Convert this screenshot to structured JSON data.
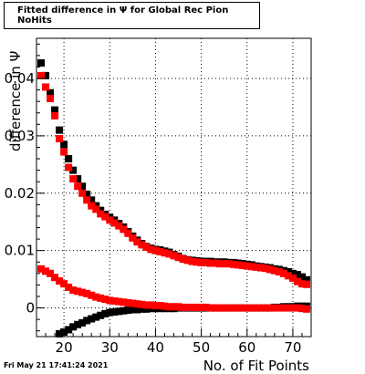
{
  "chart_data": {
    "type": "scatter",
    "title": "Fitted difference in  Ψ  for Global Rec Pion NoHits",
    "xlabel": "No. of Fit Points",
    "ylabel": "difference in  Ψ",
    "xlim": [
      14,
      74
    ],
    "ylim": [
      -0.005,
      0.047
    ],
    "xticks": [
      20,
      30,
      40,
      50,
      60,
      70
    ],
    "yticks": [
      0,
      0.01,
      0.02,
      0.03,
      0.04
    ],
    "ytick_labels": [
      "0",
      "0.01",
      "0.02",
      "0.03",
      "0.04"
    ],
    "grid": true,
    "series": [
      {
        "color": "#000000",
        "x": [
          15,
          16,
          17,
          18,
          19,
          20,
          21,
          22,
          23,
          24,
          25,
          26,
          27,
          28,
          29,
          30,
          31,
          32,
          33,
          34,
          35,
          36,
          37,
          38,
          39,
          40,
          41,
          42,
          43,
          44,
          45,
          46,
          47,
          48,
          49,
          50,
          51,
          52,
          53,
          54,
          55,
          56,
          57,
          58,
          59,
          60,
          61,
          62,
          63,
          64,
          65,
          66,
          67,
          68,
          69,
          70,
          71,
          72,
          73
        ],
        "y": [
          0.0427,
          0.0405,
          0.0375,
          0.0345,
          0.031,
          0.0285,
          0.026,
          0.024,
          0.0225,
          0.0212,
          0.0198,
          0.0188,
          0.0178,
          0.017,
          0.0163,
          0.0158,
          0.0153,
          0.0147,
          0.0141,
          0.0133,
          0.0125,
          0.0118,
          0.0112,
          0.0107,
          0.0104,
          0.0102,
          0.0101,
          0.0099,
          0.0097,
          0.0093,
          0.009,
          0.0086,
          0.0084,
          0.0083,
          0.0082,
          0.0081,
          0.0081,
          0.0081,
          0.008,
          0.008,
          0.008,
          0.0079,
          0.0079,
          0.0078,
          0.0077,
          0.0076,
          0.0075,
          0.0073,
          0.0072,
          0.0071,
          0.007,
          0.0068,
          0.0067,
          0.0065,
          0.0063,
          0.006,
          0.0058,
          0.0054,
          0.0049
        ]
      },
      {
        "color": "#ff0000",
        "x": [
          15,
          16,
          17,
          18,
          19,
          20,
          21,
          22,
          23,
          24,
          25,
          26,
          27,
          28,
          29,
          30,
          31,
          32,
          33,
          34,
          35,
          36,
          37,
          38,
          39,
          40,
          41,
          42,
          43,
          44,
          45,
          46,
          47,
          48,
          49,
          50,
          51,
          52,
          53,
          54,
          55,
          56,
          57,
          58,
          59,
          60,
          61,
          62,
          63,
          64,
          65,
          66,
          67,
          68,
          69,
          70,
          71,
          72,
          73
        ],
        "y": [
          0.0405,
          0.0385,
          0.0365,
          0.0335,
          0.0295,
          0.0272,
          0.0245,
          0.0225,
          0.0212,
          0.02,
          0.0188,
          0.0178,
          0.0172,
          0.0164,
          0.0159,
          0.0153,
          0.0148,
          0.0143,
          0.0137,
          0.013,
          0.0122,
          0.0115,
          0.011,
          0.0106,
          0.0102,
          0.01,
          0.0098,
          0.0096,
          0.0094,
          0.0091,
          0.0088,
          0.0085,
          0.0083,
          0.0081,
          0.008,
          0.0079,
          0.0079,
          0.0078,
          0.0078,
          0.0077,
          0.0077,
          0.0077,
          0.0076,
          0.0075,
          0.0074,
          0.0073,
          0.0072,
          0.0071,
          0.007,
          0.0069,
          0.0067,
          0.0065,
          0.0063,
          0.006,
          0.0056,
          0.0052,
          0.0046,
          0.0042,
          0.0041
        ]
      },
      {
        "color": "#000000",
        "x": [
          19,
          20,
          21,
          22,
          23,
          24,
          25,
          26,
          27,
          28,
          29,
          30,
          31,
          32,
          33,
          34,
          35,
          36,
          37,
          38,
          39,
          40,
          41,
          42,
          43,
          44,
          45,
          46,
          47,
          48,
          49,
          50,
          51,
          52,
          53,
          54,
          55,
          56,
          57,
          58,
          59,
          60,
          61,
          62,
          63,
          64,
          65,
          66,
          67,
          68,
          69,
          70,
          71,
          72,
          73
        ],
        "y": [
          -0.0045,
          -0.0042,
          -0.0038,
          -0.0033,
          -0.0029,
          -0.0026,
          -0.0022,
          -0.0019,
          -0.0016,
          -0.0013,
          -0.001,
          -0.0008,
          -0.0007,
          -0.0006,
          -0.0005,
          -0.0004,
          -0.0003,
          -0.0003,
          -0.0002,
          -0.0002,
          -0.0001,
          -0.0001,
          -0.0001,
          -0.0001,
          -0.0001,
          -0.0001,
          0.0,
          0.0,
          0.0,
          0.0,
          0.0,
          0.0,
          0.0,
          0.0,
          0.0,
          0.0,
          0.0,
          0.0,
          0.0,
          0.0,
          0.0,
          0.0,
          0.0,
          0.0,
          0.0,
          0.0,
          0.0,
          0.0001,
          0.0001,
          0.0002,
          0.0002,
          0.0002,
          0.0003,
          0.0003,
          0.0003
        ]
      },
      {
        "color": "#ff0000",
        "x": [
          15,
          16,
          17,
          18,
          19,
          20,
          21,
          22,
          23,
          24,
          25,
          26,
          27,
          28,
          29,
          30,
          31,
          32,
          33,
          34,
          35,
          36,
          37,
          38,
          39,
          40,
          41,
          42,
          43,
          44,
          45,
          46,
          47,
          48,
          49,
          50,
          51,
          52,
          53,
          54,
          55,
          56,
          57,
          58,
          59,
          60,
          61,
          62,
          63,
          64,
          65,
          66,
          67,
          68,
          69,
          70,
          71,
          72,
          73
        ],
        "y": [
          0.0068,
          0.0064,
          0.006,
          0.0053,
          0.0047,
          0.0042,
          0.0036,
          0.0031,
          0.0029,
          0.0027,
          0.0025,
          0.0022,
          0.0019,
          0.0017,
          0.0015,
          0.0013,
          0.0012,
          0.0011,
          0.001,
          0.0009,
          0.0008,
          0.0007,
          0.0006,
          0.0005,
          0.0005,
          0.0004,
          0.0004,
          0.0003,
          0.0002,
          0.0002,
          0.0002,
          0.0001,
          0.0001,
          0.0001,
          0.0001,
          0.0001,
          0.0001,
          0.0,
          0.0,
          0.0,
          0.0,
          0.0,
          0.0,
          0.0,
          0.0,
          0.0,
          0.0,
          0.0,
          0.0,
          0.0,
          0.0,
          0.0,
          0.0,
          0.0,
          0.0,
          0.0,
          0.0,
          -0.0001,
          -0.0002
        ]
      }
    ]
  },
  "footer": {
    "date": "Fri May 21 17:41:24 2021"
  }
}
